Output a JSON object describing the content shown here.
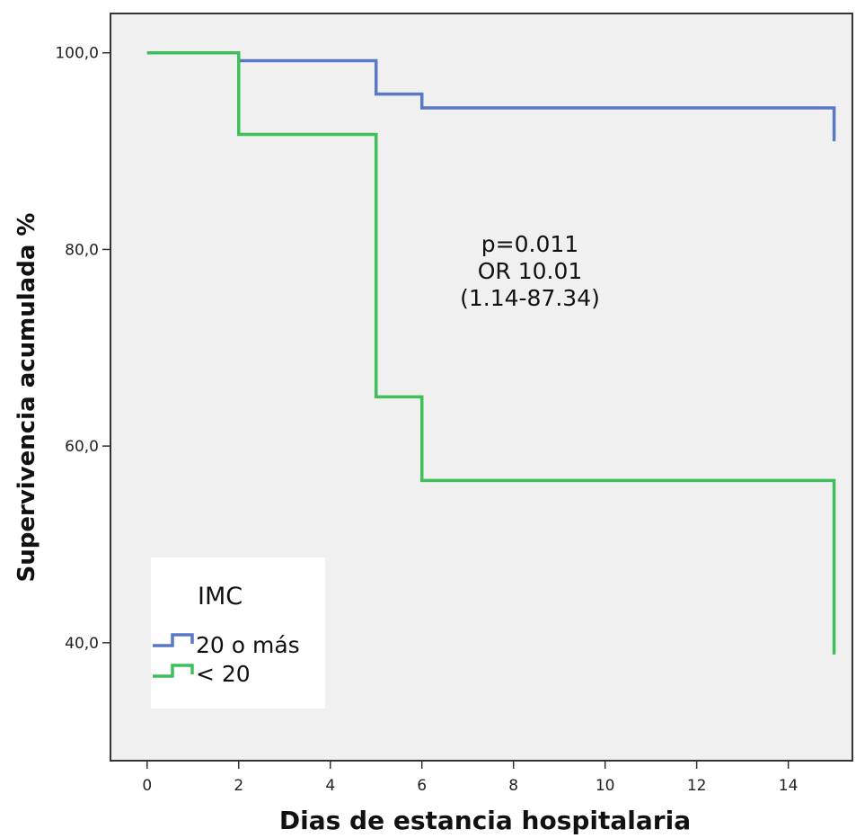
{
  "chart_data": {
    "type": "line",
    "step": true,
    "xlabel": "Dias de estancia hospitalaria",
    "ylabel": "Supervivencia acumulada %",
    "xlim": [
      -0.8,
      15.4
    ],
    "ylim": [
      28,
      104
    ],
    "x_ticks": [
      {
        "value": 0,
        "label": "0"
      },
      {
        "value": 2,
        "label": "2"
      },
      {
        "value": 4,
        "label": "4"
      },
      {
        "value": 6,
        "label": "6"
      },
      {
        "value": 8,
        "label": "8"
      },
      {
        "value": 10,
        "label": "10"
      },
      {
        "value": 12,
        "label": "12"
      },
      {
        "value": 14,
        "label": "14"
      }
    ],
    "y_ticks": [
      {
        "value": 40,
        "label": "40,0"
      },
      {
        "value": 60,
        "label": "60,0"
      },
      {
        "value": 80,
        "label": "80,0"
      },
      {
        "value": 100,
        "label": "100,0"
      }
    ],
    "series": [
      {
        "name": "20 o más",
        "color": "#5b78c8",
        "points": [
          [
            0,
            100
          ],
          [
            2,
            99.2
          ],
          [
            5,
            95.8
          ],
          [
            6,
            94.4
          ],
          [
            15,
            91.0
          ]
        ]
      },
      {
        "name": "< 20",
        "color": "#3fbf5a",
        "points": [
          [
            0,
            100
          ],
          [
            2,
            91.7
          ],
          [
            5,
            65.0
          ],
          [
            6,
            56.5
          ],
          [
            15,
            38.8
          ]
        ]
      }
    ],
    "annotation": [
      "p=0.011",
      "OR 10.01",
      "(1.14-87.34)"
    ],
    "legend": {
      "title": "IMC",
      "placement": "bottom-left"
    },
    "grid": false,
    "background": "#f0f0f0"
  }
}
